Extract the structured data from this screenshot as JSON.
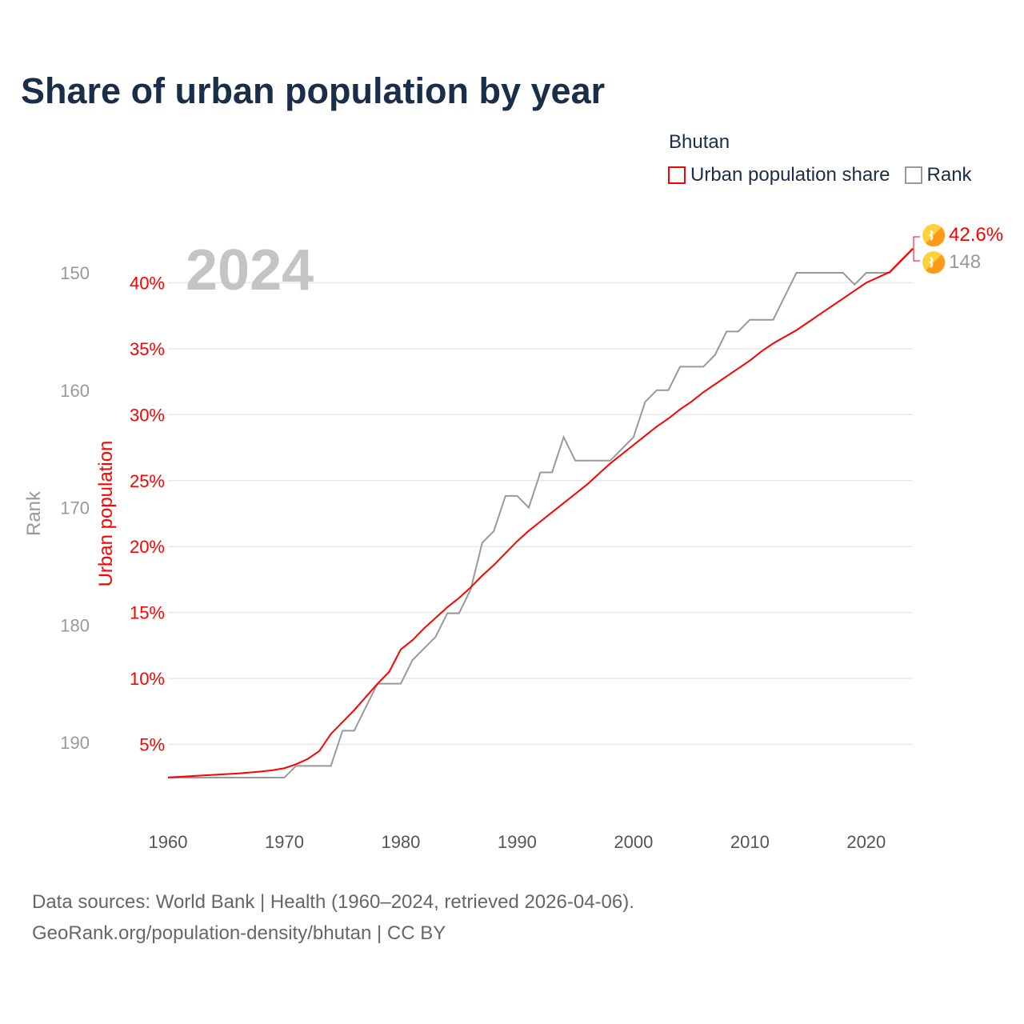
{
  "title": "Share of urban population by year",
  "legend": {
    "title": "Bhutan",
    "items": [
      {
        "label": "Urban population share",
        "color": "#ff0000"
      },
      {
        "label": "Rank",
        "color": "#999999"
      }
    ]
  },
  "year_watermark": "2024",
  "end_labels": {
    "urban": "42.6%",
    "rank": "148",
    "icon": "bhutan-flag-icon"
  },
  "footer": {
    "line1": "Data sources: World Bank | Health (1960–2024, retrieved 2026-04-06).",
    "line2": "GeoRank.org/population-density/bhutan | CC BY"
  },
  "chart_data": {
    "type": "line",
    "title": "Share of urban population by year",
    "xlabel": "",
    "ylabel": "Urban population",
    "y2label": "Rank",
    "xlim": [
      1960,
      2024
    ],
    "ylim": [
      0,
      42.6
    ],
    "y2lim": [
      193,
      148
    ],
    "x_ticks": [
      "1960",
      "1970",
      "1980",
      "1990",
      "2000",
      "2010",
      "2020"
    ],
    "y_ticks": [
      "5%",
      "10%",
      "15%",
      "20%",
      "25%",
      "30%",
      "35%",
      "40%"
    ],
    "y2_ticks": [
      "150",
      "160",
      "170",
      "180",
      "190"
    ],
    "grid": true,
    "legend_position": "top-right",
    "x": [
      1960,
      1961,
      1962,
      1963,
      1964,
      1965,
      1966,
      1967,
      1968,
      1969,
      1970,
      1971,
      1972,
      1973,
      1974,
      1975,
      1976,
      1977,
      1978,
      1979,
      1980,
      1981,
      1982,
      1983,
      1984,
      1985,
      1986,
      1987,
      1988,
      1989,
      1990,
      1991,
      1992,
      1993,
      1994,
      1995,
      1996,
      1997,
      1998,
      1999,
      2000,
      2001,
      2002,
      2003,
      2004,
      2005,
      2006,
      2007,
      2008,
      2009,
      2010,
      2011,
      2012,
      2013,
      2014,
      2015,
      2016,
      2017,
      2018,
      2019,
      2020,
      2021,
      2022,
      2023,
      2024
    ],
    "series": [
      {
        "name": "Urban population share",
        "axis": "left",
        "color": "#ff0000",
        "values": [
          2.5,
          2.55,
          2.6,
          2.65,
          2.7,
          2.75,
          2.8,
          2.87,
          2.95,
          3.05,
          3.2,
          3.5,
          3.9,
          4.5,
          5.8,
          6.7,
          7.6,
          8.6,
          9.6,
          10.5,
          12.2,
          12.9,
          13.8,
          14.6,
          15.4,
          16.1,
          16.9,
          17.8,
          18.6,
          19.5,
          20.4,
          21.2,
          21.9,
          22.6,
          23.3,
          24.0,
          24.7,
          25.5,
          26.3,
          27.0,
          27.7,
          28.4,
          29.1,
          29.7,
          30.4,
          31.0,
          31.7,
          32.3,
          32.9,
          33.5,
          34.1,
          34.8,
          35.4,
          35.9,
          36.4,
          37.0,
          37.6,
          38.2,
          38.8,
          39.4,
          40.0,
          40.4,
          40.8,
          41.7,
          42.6
        ]
      },
      {
        "name": "Rank",
        "axis": "right",
        "color": "#999999",
        "values": [
          193,
          193,
          193,
          193,
          193,
          193,
          193,
          193,
          193,
          193,
          193,
          192,
          192,
          192,
          192,
          189,
          189,
          187,
          185,
          185,
          185,
          183,
          182,
          181,
          179,
          179,
          177,
          173,
          172,
          169,
          169,
          170,
          167,
          167,
          164,
          166,
          166,
          166,
          166,
          165,
          164,
          161,
          160,
          160,
          158,
          158,
          158,
          157,
          155,
          155,
          154,
          154,
          154,
          152,
          150,
          150,
          150,
          150,
          150,
          151,
          150,
          150,
          150,
          149,
          148
        ]
      }
    ]
  }
}
